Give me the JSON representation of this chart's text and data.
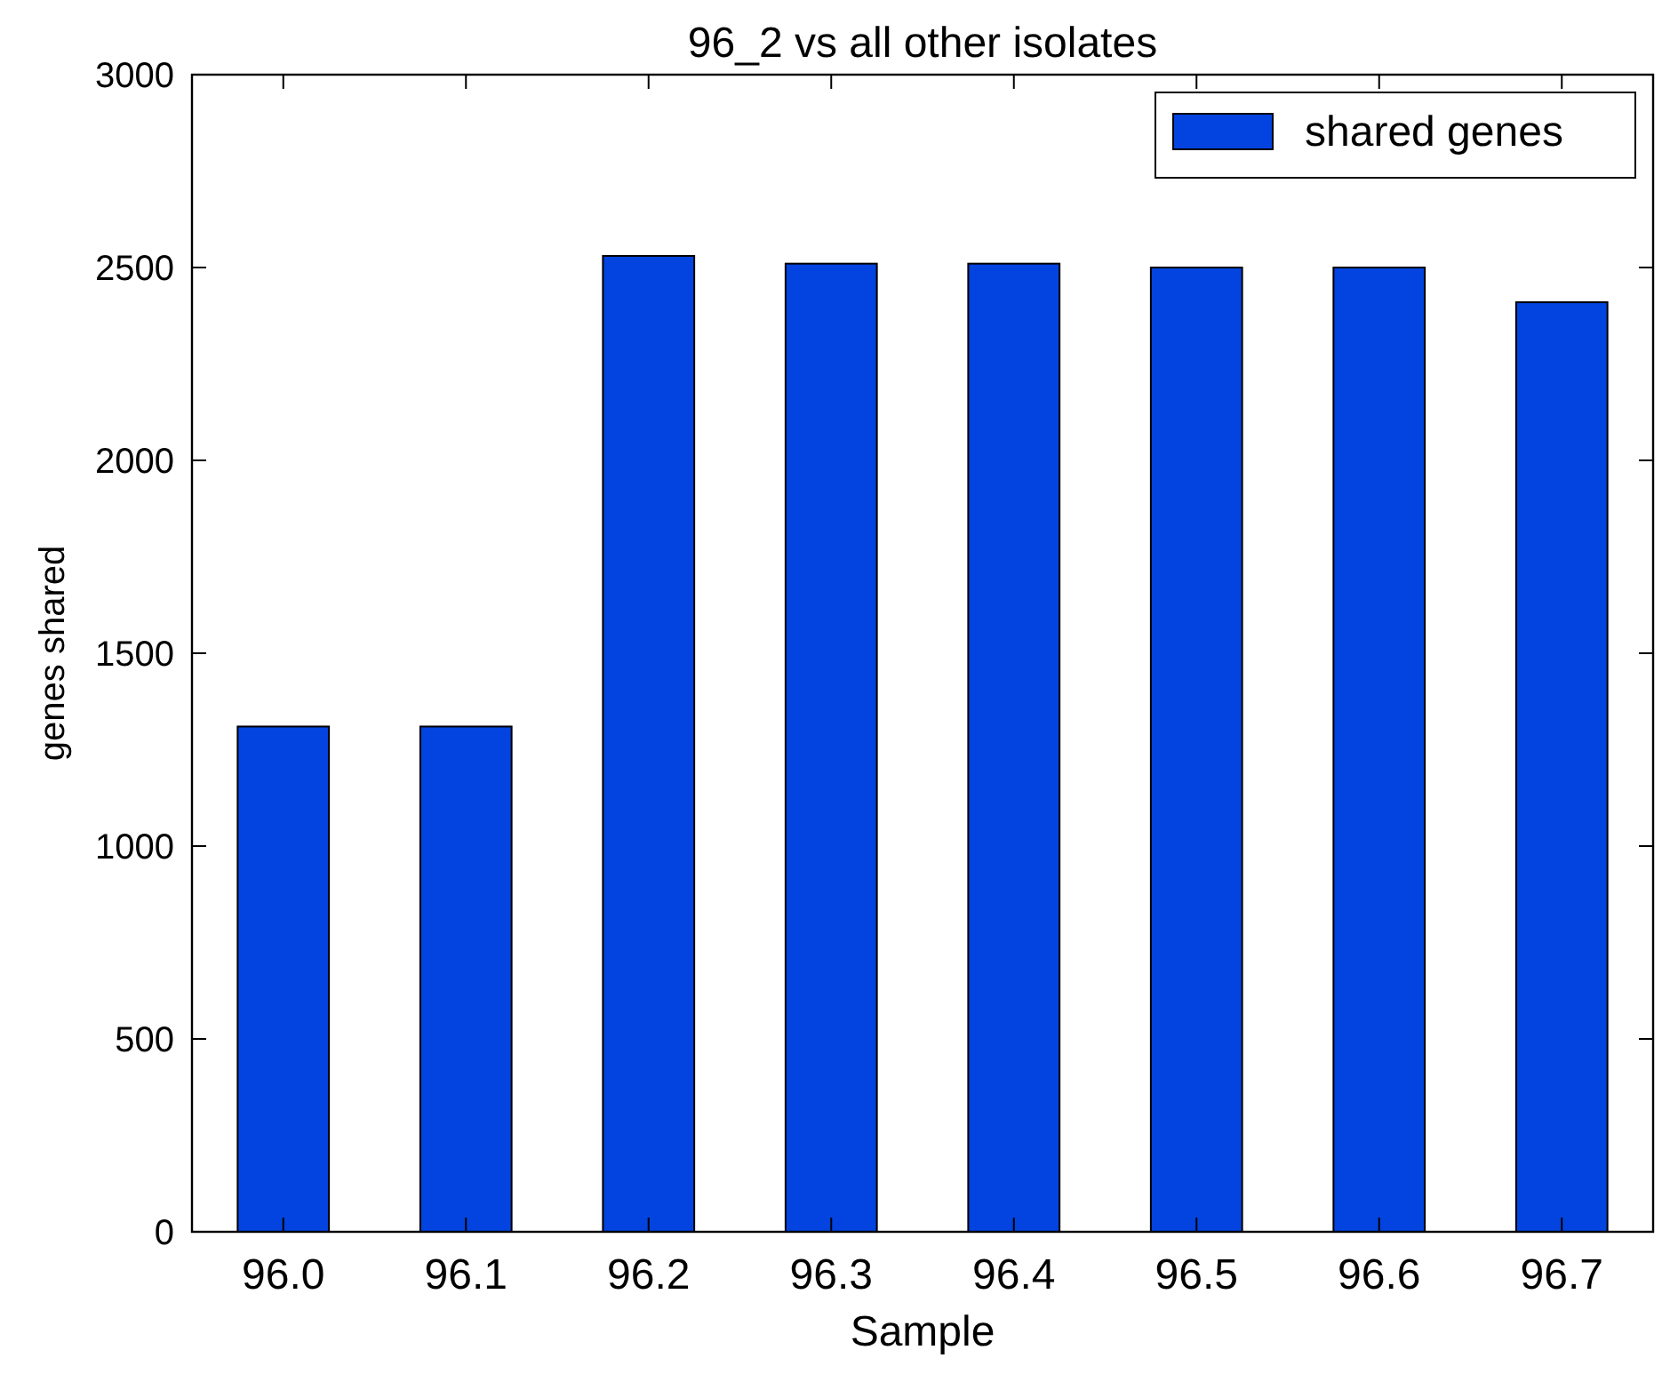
{
  "chart_data": {
    "type": "bar",
    "title": "96_2 vs all other isolates",
    "xlabel": "Sample",
    "ylabel": "genes shared",
    "categories": [
      "96.0",
      "96.1",
      "96.2",
      "96.3",
      "96.4",
      "96.5",
      "96.6",
      "96.7"
    ],
    "series": [
      {
        "name": "shared genes",
        "color": "#0343df",
        "values": [
          1310,
          1310,
          2530,
          2510,
          2510,
          2500,
          2500,
          2410
        ]
      }
    ],
    "ylim": [
      0,
      3000
    ],
    "yticks": [
      0,
      500,
      1000,
      1500,
      2000,
      2500,
      3000
    ],
    "grid": false,
    "legend": "top right"
  }
}
